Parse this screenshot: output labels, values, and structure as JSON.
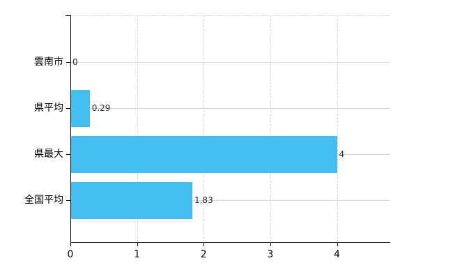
{
  "chart_data": {
    "type": "bar",
    "orientation": "horizontal",
    "title": "",
    "xlabel": "",
    "ylabel": "",
    "categories": [
      "雲南市",
      "県平均",
      "県最大",
      "全国平均"
    ],
    "values": [
      0,
      0.29,
      4,
      1.83
    ],
    "value_labels": [
      "0",
      "0.29",
      "4",
      "1.83"
    ],
    "xticks": [
      "0",
      "1",
      "2",
      "3",
      "4"
    ],
    "xtick_values": [
      0,
      1,
      2,
      3,
      4
    ],
    "xlim": [
      0,
      4.8
    ],
    "grid": true,
    "legend": false,
    "colors": {
      "bar": "#44BEEF",
      "grid": "#d5dad3",
      "axis": "#000000",
      "value_label": "#2a2a2a",
      "category_label": "#000000"
    }
  }
}
